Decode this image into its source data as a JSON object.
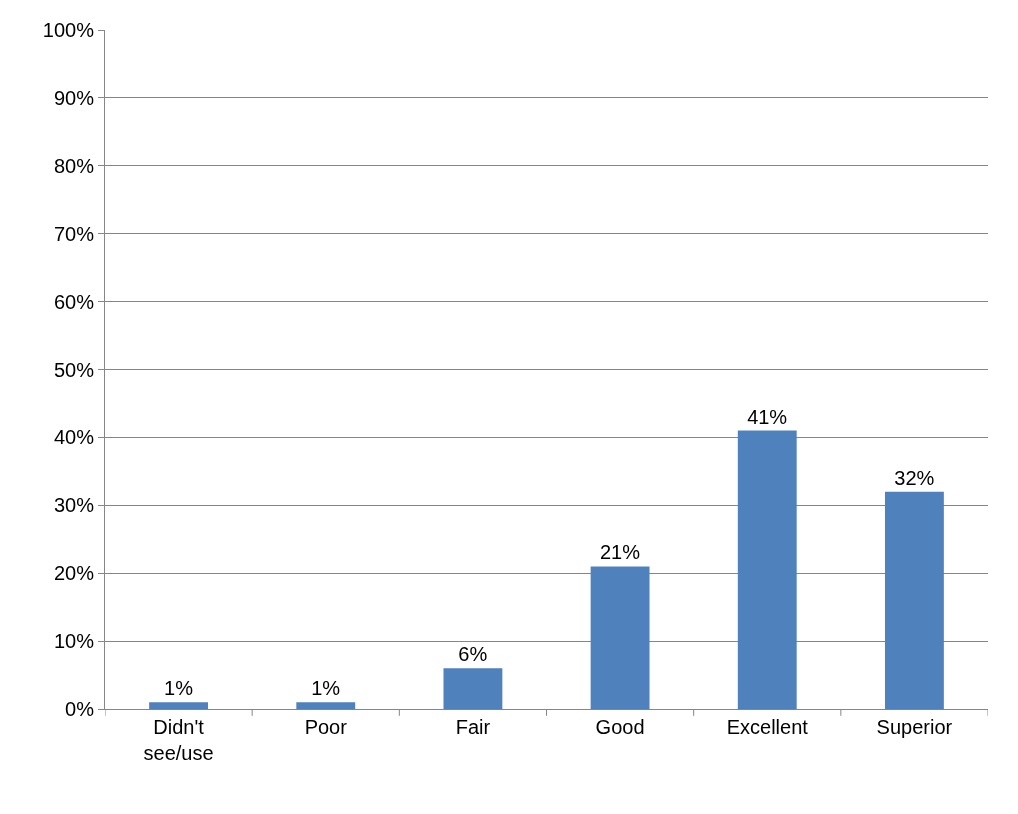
{
  "chart_data": {
    "type": "bar",
    "categories": [
      "Didn't see/use",
      "Poor",
      "Fair",
      "Good",
      "Excellent",
      "Superior"
    ],
    "values": [
      1,
      1,
      6,
      21,
      41,
      32
    ],
    "value_labels": [
      "1%",
      "1%",
      "6%",
      "21%",
      "41%",
      "32%"
    ],
    "color": "#4f81bd",
    "ylim": [
      0,
      100
    ],
    "yticks": [
      {
        "value": 0,
        "label": "0%"
      },
      {
        "value": 10,
        "label": "10%"
      },
      {
        "value": 20,
        "label": "20%"
      },
      {
        "value": 30,
        "label": "30%"
      },
      {
        "value": 40,
        "label": "40%"
      },
      {
        "value": 50,
        "label": "50%"
      },
      {
        "value": 60,
        "label": "60%"
      },
      {
        "value": 70,
        "label": "70%"
      },
      {
        "value": 80,
        "label": "80%"
      },
      {
        "value": 90,
        "label": "90%"
      },
      {
        "value": 100,
        "label": "100%"
      }
    ],
    "grid": "y",
    "legend": false
  }
}
